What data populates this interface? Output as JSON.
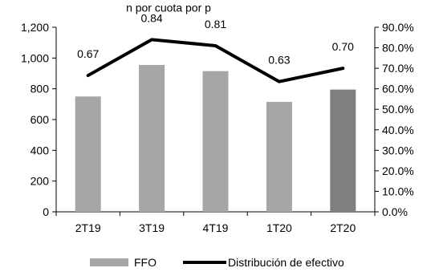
{
  "chart_data": {
    "type": "bar",
    "title": "",
    "subtitle_fragment": "n por cuota por p",
    "categories": [
      "2T19",
      "3T19",
      "4T19",
      "1T20",
      "2T20"
    ],
    "series": [
      {
        "name": "FFO",
        "kind": "bar",
        "axis": "left",
        "values": [
          750,
          955,
          915,
          715,
          795
        ],
        "colors": [
          "#a6a6a6",
          "#a6a6a6",
          "#a6a6a6",
          "#a6a6a6",
          "#7f7f7f"
        ]
      },
      {
        "name": "Distribución de efectivo",
        "kind": "line",
        "axis": "right",
        "values": [
          0.67,
          0.84,
          0.81,
          0.63,
          0.7
        ],
        "line_values_pct": [
          66.5,
          84.0,
          81.0,
          63.5,
          70.0
        ],
        "labels": [
          "0.67",
          "0.84",
          "0.81",
          "0.63",
          "0.70"
        ],
        "color": "#000000"
      }
    ],
    "y_left": {
      "ylim": [
        0,
        1200
      ],
      "ticks": [
        "0",
        "200",
        "400",
        "600",
        "800",
        "1,000",
        "1,200"
      ]
    },
    "y_right": {
      "ylim": [
        0,
        90
      ],
      "ticks": [
        "0.0%",
        "10.0%",
        "20.0%",
        "30.0%",
        "40.0%",
        "50.0%",
        "60.0%",
        "70.0%",
        "80.0%",
        "90.0%"
      ]
    },
    "grid": false,
    "legend_position": "bottom"
  }
}
